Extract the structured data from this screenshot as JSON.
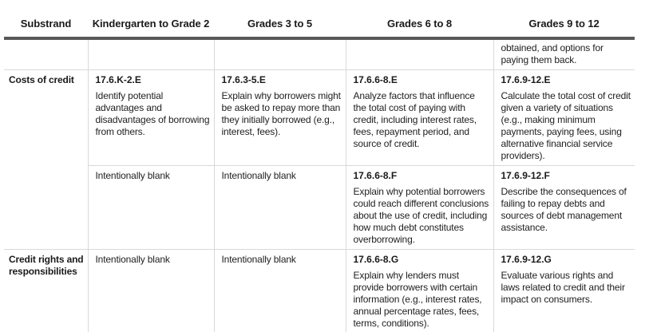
{
  "colors": {
    "rule_dark": "#595959",
    "grid_light": "#d9d9d9",
    "text": "#212121"
  },
  "table": {
    "headers": [
      "Substrand",
      "Kindergarten to Grade 2",
      "Grades 3 to 5",
      "Grades 6 to 8",
      "Grades 9 to 12"
    ],
    "continuation_row": {
      "grades9_12": "obtained, and options for paying them back."
    },
    "rows": [
      {
        "substrand": "Costs of credit",
        "cells": {
          "k2": {
            "code": "17.6.K-2.E",
            "text": "Identify potential advantages and disadvantages of borrowing from others."
          },
          "g35": {
            "code": "17.6.3-5.E",
            "text": "Explain why borrowers might be asked to repay more than they initially borrowed (e.g., interest, fees)."
          },
          "g68": {
            "code": "17.6.6-8.E",
            "text": "Analyze factors that influence the total cost of paying with credit, including interest rates, fees, repayment period, and source of credit."
          },
          "g912": {
            "code": "17.6.9-12.E",
            "text": "Calculate the total cost of credit given a variety of situations (e.g., making minimum payments, paying fees, using alternative financial service providers)."
          }
        }
      },
      {
        "substrand": "",
        "cells": {
          "k2": {
            "text": "Intentionally blank"
          },
          "g35": {
            "text": "Intentionally blank"
          },
          "g68": {
            "code": "17.6.6-8.F",
            "text": "Explain why potential borrowers could reach different conclusions about the use of credit, including how much debt constitutes overborrowing."
          },
          "g912": {
            "code": "17.6.9-12.F",
            "text": "Describe the consequences of failing to repay debts and sources of debt management assistance."
          }
        }
      },
      {
        "substrand": "Credit rights and responsibilities",
        "cells": {
          "k2": {
            "text": "Intentionally blank"
          },
          "g35": {
            "text": "Intentionally blank"
          },
          "g68": {
            "code": "17.6.6-8.G",
            "text": "Explain why lenders must provide borrowers with certain information (e.g., interest rates, annual percentage rates, fees, terms, conditions)."
          },
          "g912": {
            "code": "17.6.9-12.G",
            "text": "Evaluate various rights and laws related to credit and their impact on consumers."
          }
        }
      }
    ]
  }
}
